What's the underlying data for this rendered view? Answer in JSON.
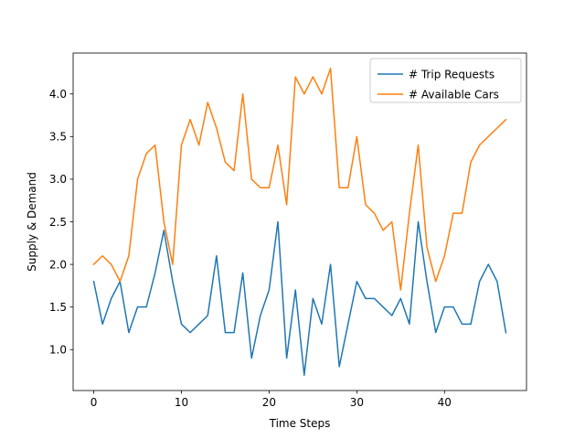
{
  "chart_data": {
    "type": "line",
    "title": "",
    "xlabel": "Time Steps",
    "ylabel": "Supply & Demand",
    "xlim": [
      -2.35,
      49.35
    ],
    "ylim": [
      0.52,
      4.48
    ],
    "xticks": [
      0,
      10,
      20,
      30,
      40
    ],
    "yticks": [
      1.0,
      1.5,
      2.0,
      2.5,
      3.0,
      3.5,
      4.0
    ],
    "grid": false,
    "legend_position": "top-right",
    "x": [
      0,
      1,
      2,
      3,
      4,
      5,
      6,
      7,
      8,
      9,
      10,
      11,
      12,
      13,
      14,
      15,
      16,
      17,
      18,
      19,
      20,
      21,
      22,
      23,
      24,
      25,
      26,
      27,
      28,
      29,
      30,
      31,
      32,
      33,
      34,
      35,
      36,
      37,
      38,
      39,
      40,
      41,
      42,
      43,
      44,
      45,
      46,
      47
    ],
    "series": [
      {
        "name": "# Trip Requests",
        "color": "#1f77b4",
        "values": [
          1.8,
          1.3,
          1.6,
          1.8,
          1.2,
          1.5,
          1.5,
          1.9,
          2.4,
          1.8,
          1.3,
          1.2,
          1.3,
          1.4,
          2.1,
          1.2,
          1.2,
          1.9,
          0.9,
          1.4,
          1.7,
          2.5,
          0.9,
          1.7,
          0.7,
          1.6,
          1.3,
          2.0,
          0.8,
          1.3,
          1.8,
          1.6,
          1.6,
          1.5,
          1.4,
          1.6,
          1.3,
          2.5,
          1.8,
          1.2,
          1.5,
          1.5,
          1.3,
          1.3,
          1.8,
          2.0,
          1.8,
          1.2
        ]
      },
      {
        "name": "# Available Cars",
        "color": "#ff7f0e",
        "values": [
          2.0,
          2.1,
          2.0,
          1.8,
          2.1,
          3.0,
          3.3,
          3.4,
          2.5,
          2.0,
          3.4,
          3.7,
          3.4,
          3.9,
          3.6,
          3.2,
          3.1,
          4.0,
          3.0,
          2.9,
          2.9,
          3.4,
          2.7,
          4.2,
          4.0,
          4.2,
          4.0,
          4.3,
          2.9,
          2.9,
          3.5,
          2.7,
          2.6,
          2.4,
          2.5,
          1.7,
          2.6,
          3.4,
          2.2,
          1.8,
          2.1,
          2.6,
          2.6,
          3.2,
          3.4,
          3.5,
          3.6,
          3.7
        ]
      }
    ]
  }
}
